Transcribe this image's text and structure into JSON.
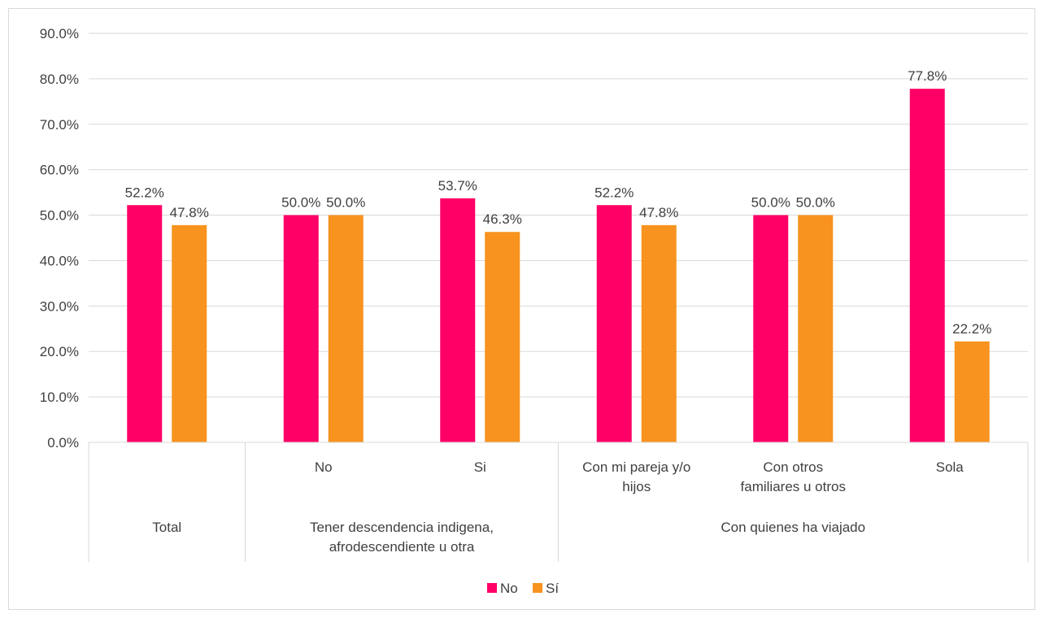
{
  "chart_data": {
    "type": "bar",
    "title": "",
    "ylim": [
      0,
      90
    ],
    "y_ticks": [
      "0.0%",
      "10.0%",
      "20.0%",
      "30.0%",
      "40.0%",
      "50.0%",
      "60.0%",
      "70.0%",
      "80.0%",
      "90.0%"
    ],
    "grid": true,
    "legend_position": "bottom",
    "groups": [
      {
        "label": "Total",
        "categories": [
          ""
        ]
      },
      {
        "label": "Tener descendencia indigena, afrodescendiente u otra",
        "categories": [
          "No",
          "Si"
        ]
      },
      {
        "label": "Con quienes ha viajado",
        "categories": [
          "Con mi pareja y/o hijos",
          "Con otros familiares u otros",
          "Sola"
        ]
      }
    ],
    "categories": [
      "Total",
      "No",
      "Si",
      "Con mi pareja y/o hijos",
      "Con otros familiares u otros",
      "Sola"
    ],
    "series": [
      {
        "name": "No",
        "color": "#ff0066",
        "values": [
          52.2,
          50.0,
          53.7,
          52.2,
          50.0,
          77.8
        ],
        "labels": [
          "52.2%",
          "50.0%",
          "53.7%",
          "52.2%",
          "50.0%",
          "77.8%"
        ]
      },
      {
        "name": "Sí",
        "color": "#f7931e",
        "values": [
          47.8,
          50.0,
          46.3,
          47.8,
          50.0,
          22.2
        ],
        "labels": [
          "47.8%",
          "50.0%",
          "46.3%",
          "47.8%",
          "50.0%",
          "22.2%"
        ]
      }
    ]
  }
}
